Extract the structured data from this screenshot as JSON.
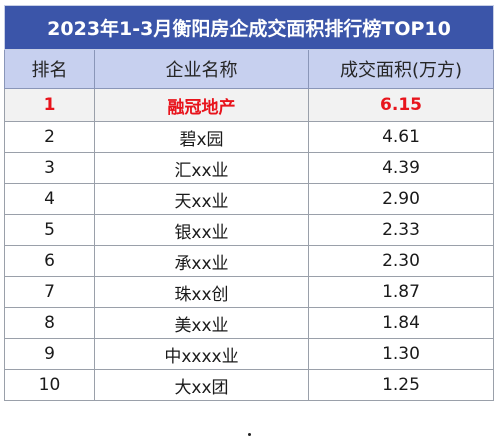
{
  "title": "2023年1-3月衡阳房企成交面积排行榜TOP10",
  "headers": [
    "排名",
    "企业名称",
    "成交面积(万方)"
  ],
  "rows": [
    {
      "rank": "1",
      "name": "融冠地产",
      "area": "6.15"
    },
    {
      "rank": "2",
      "name": "碧x园",
      "area": "4.61"
    },
    {
      "rank": "3",
      "name": "汇xx业",
      "area": "4.39"
    },
    {
      "rank": "4",
      "name": "天xx业",
      "area": "2.90"
    },
    {
      "rank": "5",
      "name": "银xx业",
      "area": "2.33"
    },
    {
      "rank": "6",
      "name": "承xx业",
      "area": "2.30"
    },
    {
      "rank": "7",
      "name": "珠xx创",
      "area": "1.87"
    },
    {
      "rank": "8",
      "name": "美xx业",
      "area": "1.84"
    },
    {
      "rank": "9",
      "name": "中xxxx业",
      "area": "1.30"
    },
    {
      "rank": "10",
      "name": "大xx团",
      "area": "1.25"
    }
  ],
  "colors": {
    "title_bg": "#3b55a9",
    "header_bg": "#c7d0ef",
    "highlight_text": "#e8141c"
  }
}
